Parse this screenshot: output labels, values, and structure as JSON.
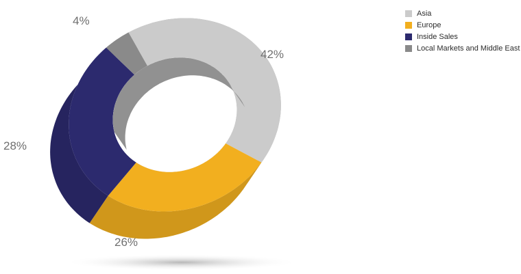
{
  "chart_data": {
    "type": "pie",
    "style": "3D donut",
    "legend_position": "top-right",
    "series": [
      {
        "name": "Asia",
        "value": 42,
        "label": "42%",
        "color": "#cbcbcb"
      },
      {
        "name": "Europe",
        "value": 26,
        "label": "26%",
        "color": "#f2af1f"
      },
      {
        "name": "Inside Sales",
        "value": 28,
        "label": "28%",
        "color": "#2c2a6e"
      },
      {
        "name": "Local Markets and Middle East",
        "value": 4,
        "label": "4%",
        "color": "#8a8a8a"
      }
    ]
  }
}
